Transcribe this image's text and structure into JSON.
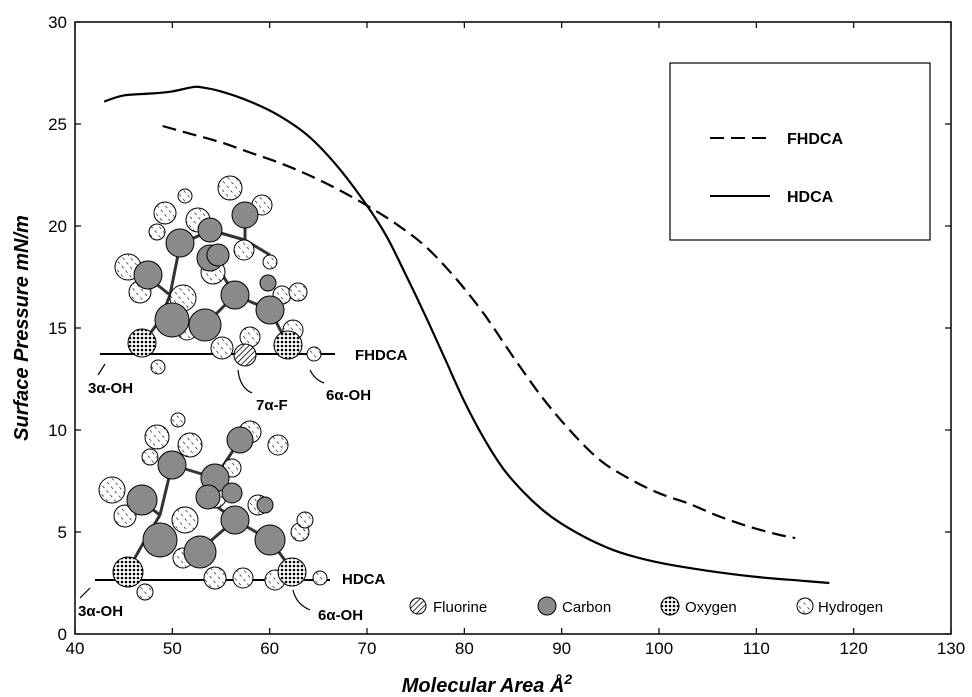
{
  "chart_data": {
    "type": "line",
    "xlabel": "Molecular Area Å",
    "xlabel_sup": "2",
    "ylabel": "Surface Pressure mN/m",
    "xlim": [
      40,
      130
    ],
    "ylim": [
      0,
      30
    ],
    "xticks": [
      40,
      50,
      60,
      70,
      80,
      90,
      100,
      110,
      120,
      130
    ],
    "yticks": [
      0,
      5,
      10,
      15,
      20,
      25,
      30
    ],
    "legend_position": "top-right",
    "series": [
      {
        "name": "FHDCA",
        "style": "dashed",
        "x": [
          49,
          52,
          55,
          58,
          61,
          64,
          67,
          70,
          73,
          76,
          79,
          82,
          85,
          88,
          91,
          94,
          97,
          100,
          103,
          106,
          109,
          112,
          114
        ],
        "y": [
          24.9,
          24.5,
          24.1,
          23.6,
          23.1,
          22.5,
          21.8,
          21.0,
          20.1,
          19.0,
          17.5,
          15.7,
          13.6,
          11.6,
          9.9,
          8.5,
          7.6,
          6.9,
          6.4,
          5.8,
          5.3,
          4.9,
          4.7
        ]
      },
      {
        "name": "HDCA",
        "style": "solid",
        "x": [
          43,
          45,
          48,
          50,
          52,
          53,
          55,
          58,
          61,
          64,
          67,
          70,
          72,
          74,
          76,
          78,
          80,
          82,
          84,
          86,
          88,
          90,
          93,
          96,
          100,
          105,
          110,
          115,
          117.5
        ],
        "y": [
          26.1,
          26.4,
          26.5,
          26.6,
          26.8,
          26.8,
          26.6,
          26.1,
          25.4,
          24.4,
          22.9,
          21.0,
          19.5,
          17.6,
          15.6,
          13.5,
          11.4,
          9.6,
          8.1,
          7.0,
          6.1,
          5.4,
          4.6,
          4.0,
          3.5,
          3.1,
          2.8,
          2.6,
          2.5
        ]
      }
    ]
  },
  "molecule_labels": {
    "fhdca": "FHDCA",
    "hdca": "HDCA",
    "fhdca_3aoh": "3α-OH",
    "fhdca_7af": "7α-F",
    "fhdca_6aoh": "6α-OH",
    "hdca_3aoh": "3α-OH",
    "hdca_6aoh": "6α-OH"
  },
  "atom_key": [
    {
      "name": "Fluorine",
      "icon": "hatched-circle-icon"
    },
    {
      "name": "Carbon",
      "icon": "gray-circle-icon"
    },
    {
      "name": "Oxygen",
      "icon": "dotted-circle-icon"
    },
    {
      "name": "Hydrogen",
      "icon": "small-hatched-circle-icon"
    }
  ],
  "colors": {
    "line": "#000000",
    "carbon": "#8a8a8a",
    "background": "#ffffff"
  }
}
